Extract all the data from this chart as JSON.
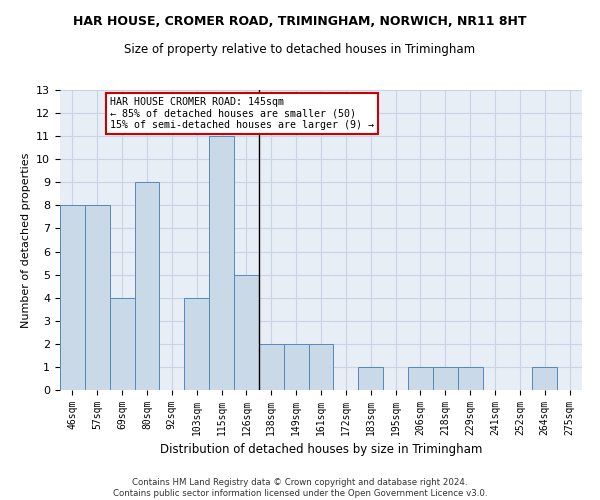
{
  "title": "HAR HOUSE, CROMER ROAD, TRIMINGHAM, NORWICH, NR11 8HT",
  "subtitle": "Size of property relative to detached houses in Trimingham",
  "xlabel": "Distribution of detached houses by size in Trimingham",
  "ylabel": "Number of detached properties",
  "categories": [
    "46sqm",
    "57sqm",
    "69sqm",
    "80sqm",
    "92sqm",
    "103sqm",
    "115sqm",
    "126sqm",
    "138sqm",
    "149sqm",
    "161sqm",
    "172sqm",
    "183sqm",
    "195sqm",
    "206sqm",
    "218sqm",
    "229sqm",
    "241sqm",
    "252sqm",
    "264sqm",
    "275sqm"
  ],
  "values": [
    8,
    8,
    4,
    9,
    0,
    4,
    11,
    5,
    2,
    2,
    2,
    0,
    1,
    0,
    1,
    1,
    1,
    0,
    0,
    1,
    0
  ],
  "bar_color": "#c9d9e8",
  "bar_edge_color": "#5588bb",
  "highlight_index": 7,
  "highlight_line_color": "#000000",
  "ylim": [
    0,
    13
  ],
  "yticks": [
    0,
    1,
    2,
    3,
    4,
    5,
    6,
    7,
    8,
    9,
    10,
    11,
    12,
    13
  ],
  "annotation_text": "HAR HOUSE CROMER ROAD: 145sqm\n← 85% of detached houses are smaller (50)\n15% of semi-detached houses are larger (9) →",
  "annotation_box_color": "#ffffff",
  "annotation_box_edge_color": "#cc0000",
  "footer_text": "Contains HM Land Registry data © Crown copyright and database right 2024.\nContains public sector information licensed under the Open Government Licence v3.0.",
  "grid_color": "#c8d4e4",
  "background_color": "#e8eef6"
}
